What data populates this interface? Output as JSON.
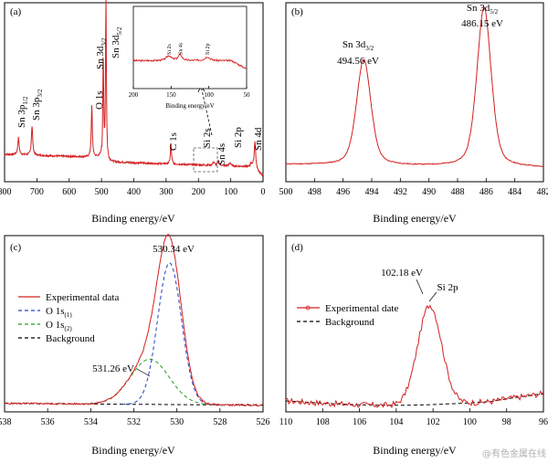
{
  "watermark": "@有色金属在线",
  "colors": {
    "experimental": "#d42020",
    "o1s1": "#2040c0",
    "o1s2": "#20a020",
    "background": "#000000"
  },
  "chart_data": [
    {
      "id": "a",
      "type": "line",
      "panel_label": "(a)",
      "xlabel": "Binding energy/eV",
      "xlim": [
        800,
        0
      ],
      "xticks": [
        800,
        700,
        600,
        500,
        400,
        300,
        200,
        100,
        0
      ],
      "peaks": [
        {
          "name": "Sn 3p1/2",
          "main": "Sn 3p",
          "sub": "1/2",
          "x": 757
        },
        {
          "name": "Sn 3p3/2",
          "main": "Sn 3p",
          "sub": "3/2",
          "x": 715
        },
        {
          "name": "O 1s",
          "main": "O 1s",
          "sub": "",
          "x": 530
        },
        {
          "name": "Sn 3d3/2",
          "main": "Sn 3d",
          "sub": "3/2",
          "x": 494.6
        },
        {
          "name": "Sn 3d5/2",
          "main": "Sn 3d",
          "sub": "5/2",
          "x": 486.2
        },
        {
          "name": "C 1s",
          "main": "C 1s",
          "sub": "",
          "x": 285
        },
        {
          "name": "Si 2s",
          "main": "Si 2s",
          "sub": "",
          "x": 153
        },
        {
          "name": "Sn 4s",
          "main": "Sn 4s",
          "sub": "",
          "x": 138
        },
        {
          "name": "Si 2p",
          "main": "Si 2p",
          "sub": "",
          "x": 102
        },
        {
          "name": "Sn 4d",
          "main": "Sn 4d",
          "sub": "",
          "x": 25
        }
      ],
      "inset": {
        "xlabel": "Binding energy/eV",
        "xlim": [
          200,
          50
        ],
        "xticks": [
          200,
          150,
          100,
          50
        ],
        "peaks": [
          {
            "name": "Si 2s",
            "x": 153
          },
          {
            "name": "Sn 4s",
            "x": 138
          },
          {
            "name": "Si 2p",
            "x": 102
          }
        ]
      }
    },
    {
      "id": "b",
      "type": "line",
      "panel_label": "(b)",
      "xlabel": "Binding energy/eV",
      "xlim": [
        500,
        482
      ],
      "xticks": [
        500,
        498,
        496,
        494,
        492,
        490,
        488,
        486,
        484,
        482
      ],
      "peaks": [
        {
          "main": "Sn 3d",
          "sub": "3/2",
          "value": "494.56 eV",
          "x": 494.56,
          "height": 0.65
        },
        {
          "main": "Sn 3d",
          "sub": "5/2",
          "value": "486.15 eV",
          "x": 486.15,
          "height": 0.98
        }
      ]
    },
    {
      "id": "c",
      "type": "line",
      "panel_label": "(c)",
      "xlabel": "Binding energy/eV",
      "xlim": [
        538,
        526
      ],
      "xticks": [
        538,
        536,
        534,
        532,
        530,
        528,
        526
      ],
      "annotations": [
        {
          "text": "530.34 eV",
          "x": 530.34
        },
        {
          "text": "531.26 eV",
          "x": 531.26
        }
      ],
      "legend": [
        {
          "label": "Experimental data",
          "style": "solid-red"
        },
        {
          "main": "O 1s",
          "sub": "(1)",
          "style": "dash-blue"
        },
        {
          "main": "O 1s",
          "sub": "(2)",
          "style": "dash-green"
        },
        {
          "label": "Background",
          "style": "dash-black"
        }
      ],
      "components": [
        {
          "name": "O 1s(1)",
          "center": 530.34,
          "height": 0.94
        },
        {
          "name": "O 1s(2)",
          "center": 531.26,
          "height": 0.3
        }
      ]
    },
    {
      "id": "d",
      "type": "line",
      "panel_label": "(d)",
      "xlabel": "Binding energy/eV",
      "xlim": [
        110,
        96
      ],
      "xticks": [
        110,
        108,
        106,
        104,
        102,
        100,
        98,
        96
      ],
      "annotations": [
        {
          "text": "102.18 eV",
          "x": 102.18
        },
        {
          "text": "Si 2p",
          "x": 102.18
        }
      ],
      "legend": [
        {
          "label": "Experimental date",
          "style": "solid-red"
        },
        {
          "label": "Background",
          "style": "dash-black"
        }
      ]
    }
  ]
}
